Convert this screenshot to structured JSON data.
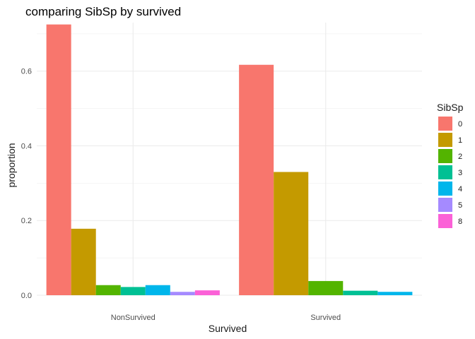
{
  "chart_data": {
    "type": "bar",
    "title": "comparing SibSp by survived",
    "xlabel": "Survived",
    "ylabel": "proportion",
    "categories": [
      "NonSurvived",
      "Survived"
    ],
    "ylim": [
      0,
      0.73
    ],
    "yticks": [
      0.0,
      0.2,
      0.4,
      0.6
    ],
    "ytick_labels": [
      "0.0",
      "0.2",
      "0.4",
      "0.6"
    ],
    "grid": true,
    "legend": {
      "title": "SibSp",
      "position": "right"
    },
    "series": [
      {
        "name": "0",
        "color": "#F8766D",
        "values": [
          0.725,
          0.617
        ]
      },
      {
        "name": "1",
        "color": "#C49A00",
        "values": [
          0.178,
          0.33
        ]
      },
      {
        "name": "2",
        "color": "#53B400",
        "values": [
          0.027,
          0.038
        ]
      },
      {
        "name": "3",
        "color": "#00C094",
        "values": [
          0.022,
          0.012
        ]
      },
      {
        "name": "4",
        "color": "#00B6EB",
        "values": [
          0.027,
          0.009
        ]
      },
      {
        "name": "5",
        "color": "#A58AFF",
        "values": [
          0.009,
          null
        ]
      },
      {
        "name": "8",
        "color": "#FB61D7",
        "values": [
          0.013,
          null
        ]
      }
    ]
  }
}
